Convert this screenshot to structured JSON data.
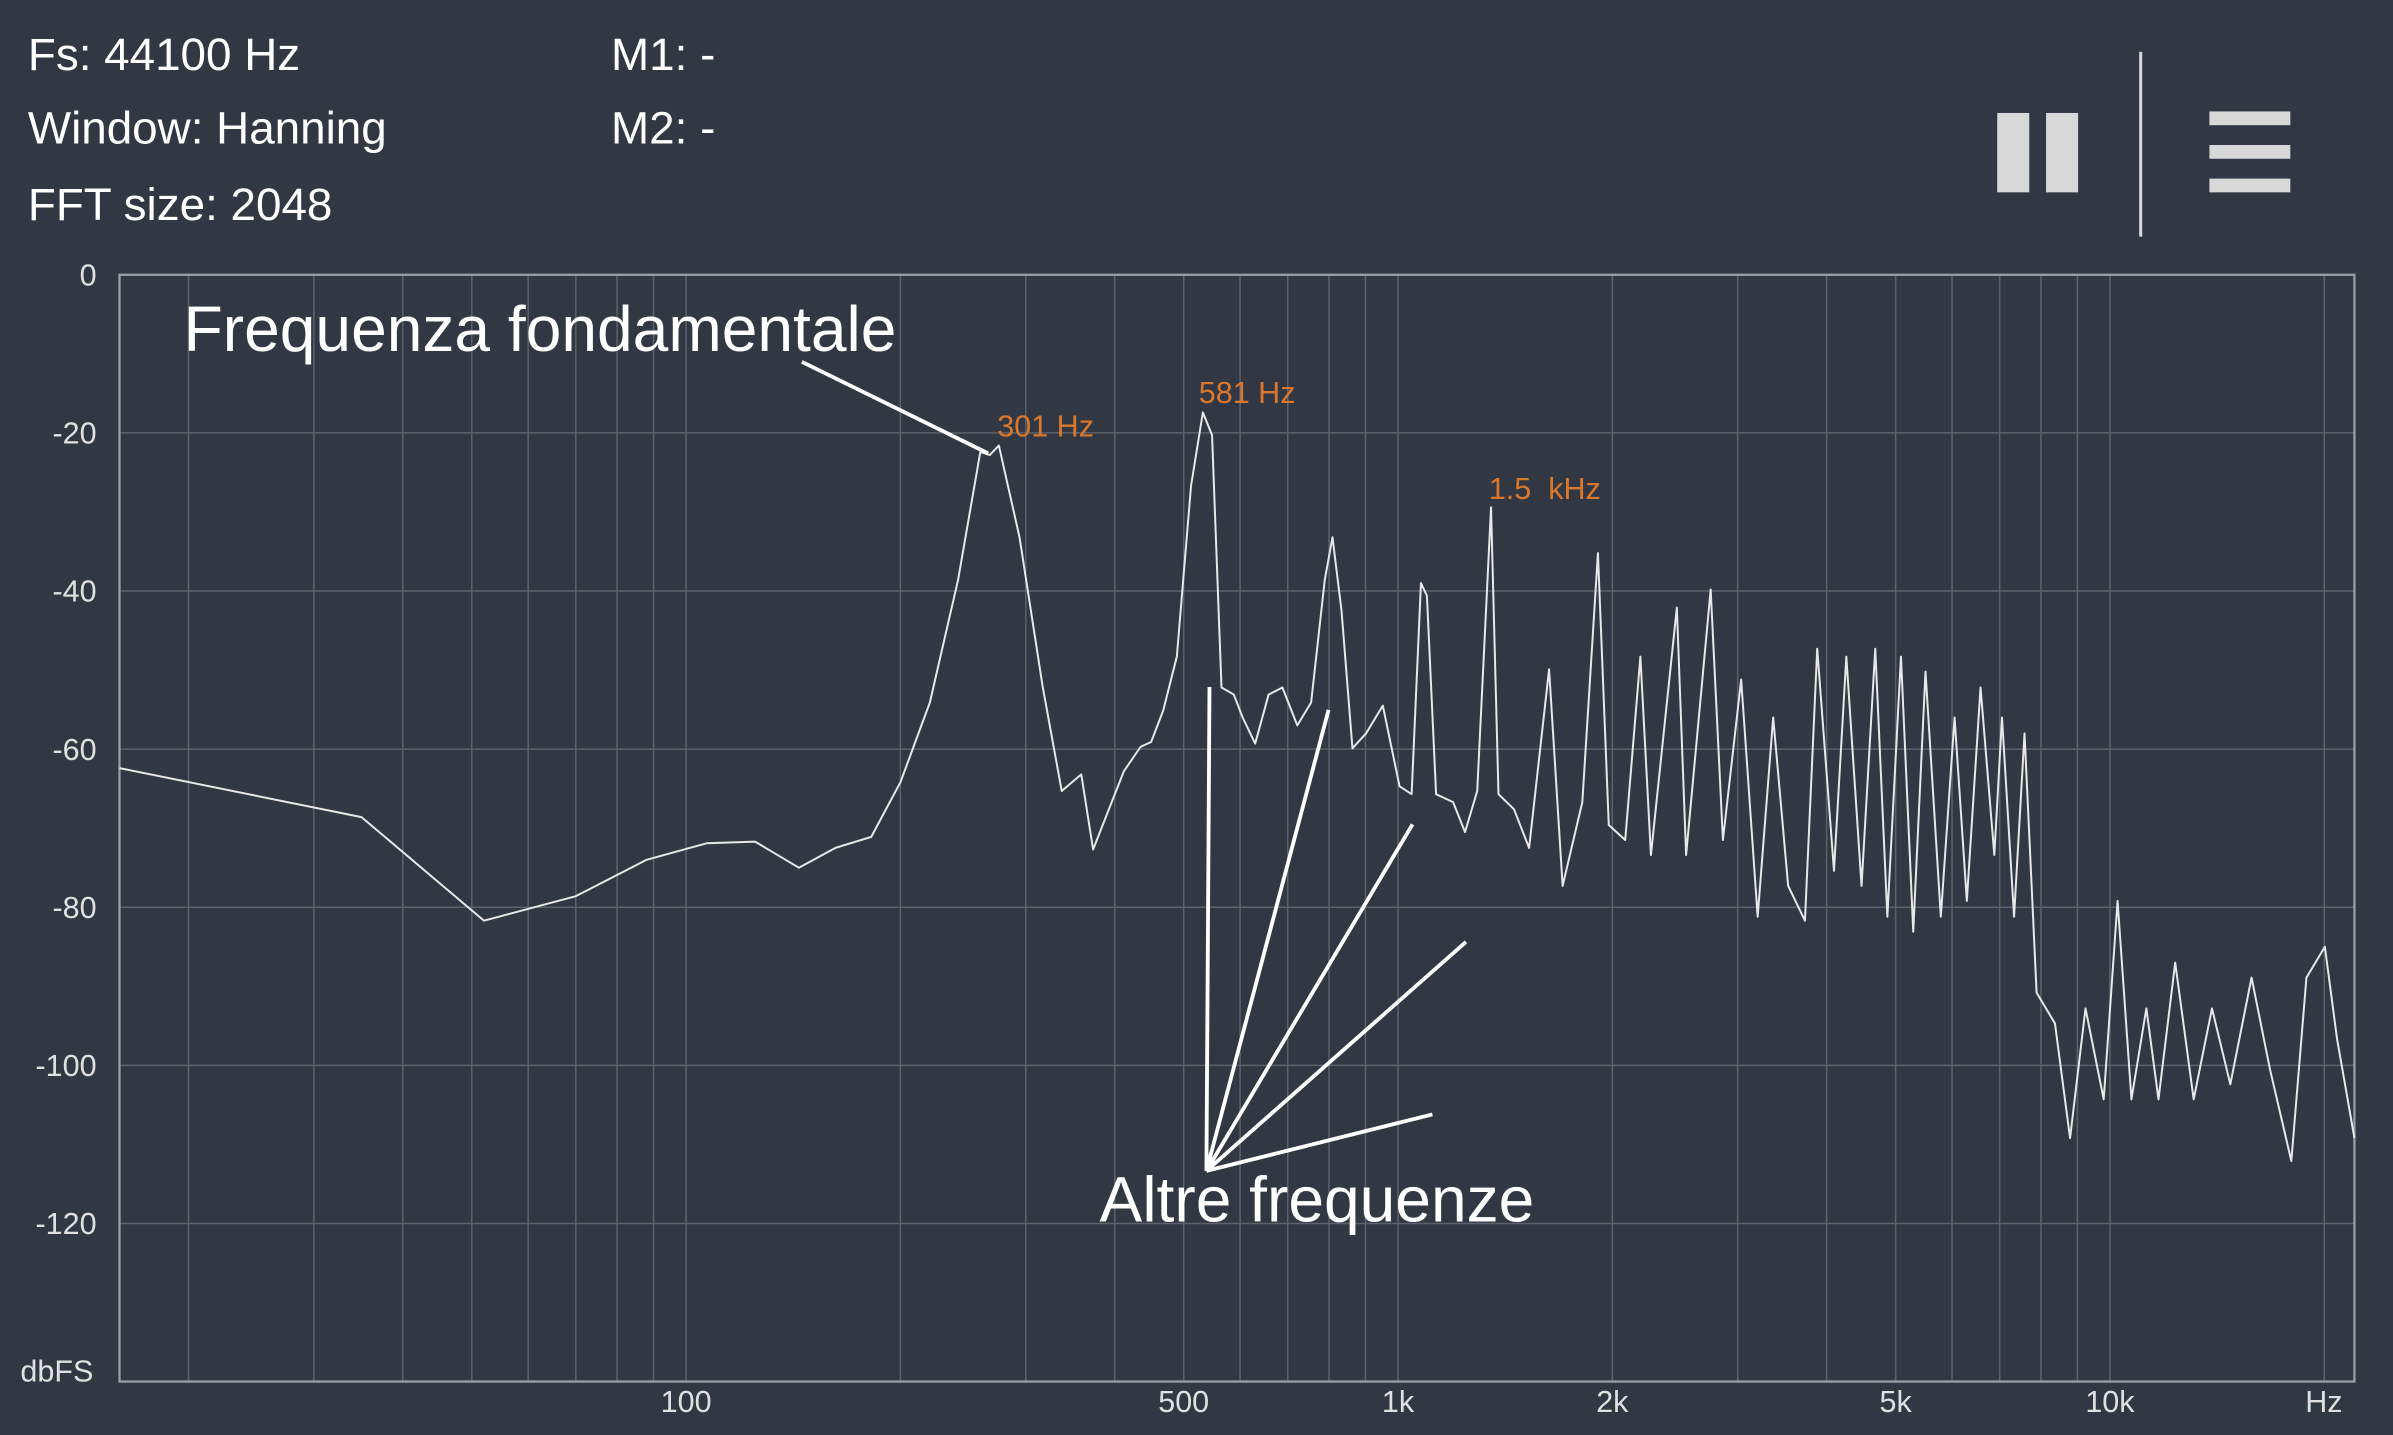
{
  "header": {
    "fs": "Fs: 44100 Hz",
    "window": "Window: Hanning",
    "fft_size": "FFT size: 2048",
    "m1": "M1: -",
    "m2": "M2: -"
  },
  "chart_data": {
    "type": "line",
    "log_x": true,
    "grid": true,
    "color": "#e8e8e8",
    "x_label": "Hz",
    "y_label": "dbFS",
    "xlim": [
      16,
      22050
    ],
    "ylim": [
      -140,
      0
    ],
    "yticks": [
      0,
      -20,
      -40,
      -60,
      -80,
      -100,
      -120
    ],
    "xticks": [
      100,
      500,
      {
        "value": 1000,
        "label": "1k"
      },
      {
        "value": 2000,
        "label": "2k"
      },
      {
        "value": 5000,
        "label": "5k"
      },
      {
        "value": 10000,
        "label": "10k"
      }
    ],
    "xgrid": [
      20,
      30,
      40,
      50,
      60,
      70,
      80,
      90,
      200,
      300,
      400,
      600,
      700,
      800,
      900,
      3000,
      4000,
      6000,
      7000,
      8000,
      9000,
      20000
    ],
    "x": [
      16,
      35,
      52,
      70,
      88,
      107,
      125,
      144,
      162,
      182,
      200,
      220,
      241,
      259,
      267,
      275,
      294,
      317,
      337,
      359,
      373,
      412,
      435,
      450,
      468,
      489,
      512,
      532,
      548,
      565,
      588,
      605,
      630,
      658,
      688,
      722,
      755,
      789,
      809,
      833,
      863,
      902,
      952,
      1005,
      1045,
      1077,
      1098,
      1131,
      1195,
      1242,
      1292,
      1351,
      1384,
      1455,
      1528,
      1630,
      1703,
      1815,
      1909,
      1977,
      2085,
      2190,
      2266,
      2464,
      2539,
      2749,
      2860,
      3034,
      3200,
      3365,
      3532,
      3729,
      3880,
      4096,
      4263,
      4478,
      4681,
      4868,
      5087,
      5293,
      5507,
      5787,
      6050,
      6295,
      6580,
      6880,
      7053,
      7334,
      7586,
      7888,
      8371,
      8790,
      9240,
      9800,
      10250,
      10720,
      11250,
      11700,
      12350,
      13110,
      13910,
      14760,
      15810,
      16780,
      17980,
      18880,
      20040,
      20840,
      22050
    ],
    "values": [
      -62.4,
      -68.6,
      -81.7,
      -78.6,
      -74.0,
      -71.9,
      -71.7,
      -75.0,
      -72.5,
      -71.1,
      -64.2,
      -54.1,
      -38.6,
      -22.4,
      -22.8,
      -21.6,
      -33.2,
      -52.2,
      -65.3,
      -63.2,
      -72.7,
      -62.8,
      -59.7,
      -59.1,
      -55.1,
      -48.3,
      -26.7,
      -17.4,
      -20.3,
      -52.2,
      -53.1,
      -56.0,
      -59.3,
      -53.1,
      -52.2,
      -57.0,
      -54.1,
      -38.6,
      -33.2,
      -42.5,
      -59.9,
      -58.0,
      -54.5,
      -64.7,
      -65.7,
      -39.0,
      -40.6,
      -65.7,
      -66.7,
      -70.5,
      -65.3,
      -29.4,
      -65.7,
      -67.6,
      -72.5,
      -49.9,
      -77.3,
      -66.7,
      -35.2,
      -69.6,
      -71.5,
      -48.3,
      -73.4,
      -42.1,
      -73.4,
      -39.8,
      -71.5,
      -51.2,
      -81.2,
      -56.0,
      -77.3,
      -81.7,
      -47.3,
      -75.4,
      -48.3,
      -77.3,
      -47.3,
      -81.2,
      -48.3,
      -83.1,
      -50.2,
      -81.2,
      -56.0,
      -79.2,
      -52.2,
      -73.4,
      -56.0,
      -81.2,
      -58.0,
      -90.8,
      -94.7,
      -109.2,
      -92.8,
      -104.3,
      -79.2,
      -104.3,
      -92.8,
      -104.3,
      -87.0,
      -104.3,
      -92.8,
      -102.4,
      -88.9,
      -100.5,
      -112.1,
      -88.9,
      -85.0,
      -96.6,
      -109.2
    ]
  },
  "peak_labels": [
    "301 Hz",
    "581 Hz",
    "1.5  kHz"
  ],
  "annotations": [
    "Frequenza fondamentale",
    "Altre frequenze"
  ]
}
